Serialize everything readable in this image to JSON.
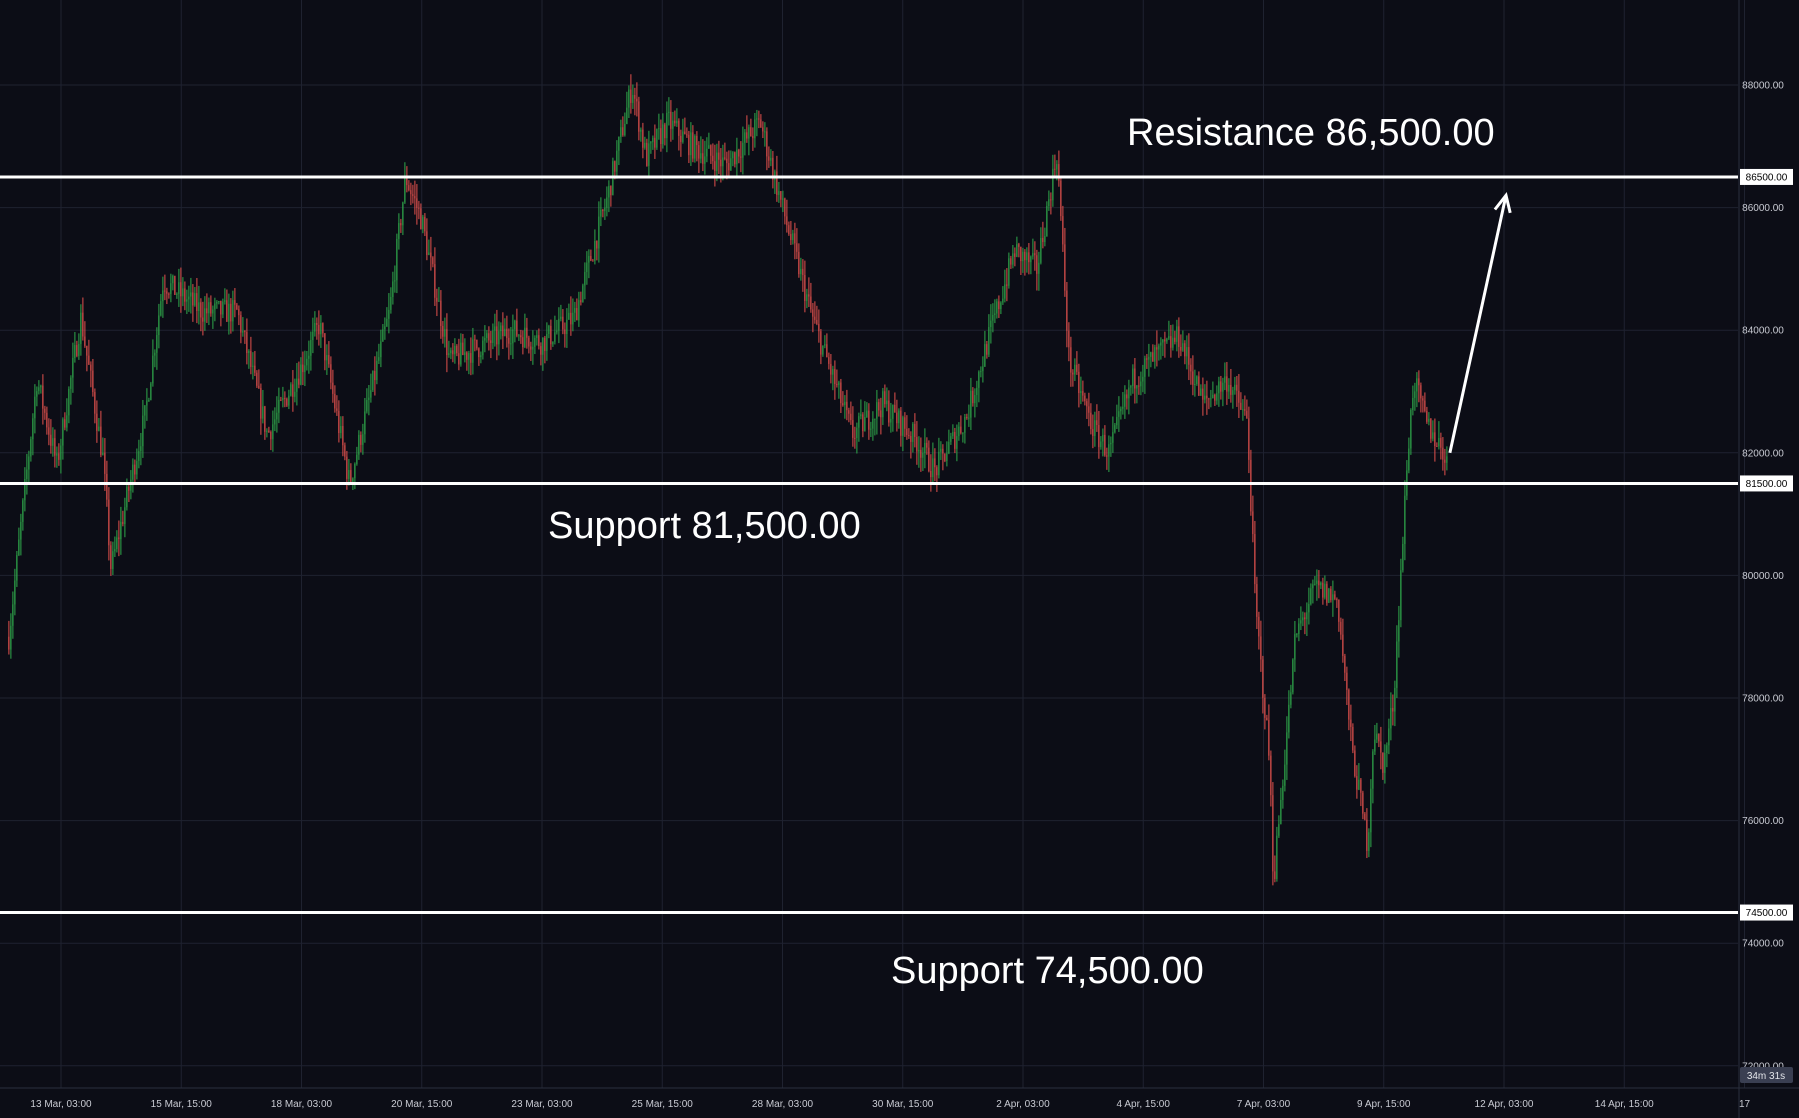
{
  "theme": {
    "background": "#0c0d16",
    "grid": "#1f2230",
    "axis_text": "#c9cbd3",
    "up": "#2fa84a",
    "down": "#e2514d",
    "level_line": "#ffffff"
  },
  "chart_data": {
    "type": "candlestick",
    "title": "",
    "ylim": [
      72000,
      89500
    ],
    "y_ticks": [
      "88000.00",
      "86000.00",
      "84000.00",
      "82000.00",
      "80000.00",
      "78000.00",
      "76000.00",
      "74000.00",
      "72000.00"
    ],
    "x_ticks": [
      "13 Mar, 03:00",
      "15 Mar, 15:00",
      "18 Mar, 03:00",
      "20 Mar, 15:00",
      "23 Mar, 03:00",
      "25 Mar, 15:00",
      "28 Mar, 03:00",
      "30 Mar, 15:00",
      "2 Apr, 03:00",
      "4 Apr, 15:00",
      "7 Apr, 03:00",
      "9 Apr, 15:00",
      "12 Apr, 03:00",
      "14 Apr, 15:00",
      "17"
    ],
    "price_path": [
      {
        "t": "12 Mar, 01:00",
        "price": 79000
      },
      {
        "t": "12 Mar, 15:00",
        "price": 83200
      },
      {
        "t": "13 Mar, 01:00",
        "price": 81800
      },
      {
        "t": "13 Mar, 13:00",
        "price": 84200
      },
      {
        "t": "14 Mar, 00:00",
        "price": 81900
      },
      {
        "t": "14 Mar, 04:00",
        "price": 80100
      },
      {
        "t": "14 Mar, 21:00",
        "price": 82600
      },
      {
        "t": "15 Mar, 06:00",
        "price": 84800
      },
      {
        "t": "16 Mar, 02:00",
        "price": 84300
      },
      {
        "t": "16 Mar, 19:00",
        "price": 84300
      },
      {
        "t": "17 Mar, 10:00",
        "price": 82300
      },
      {
        "t": "18 Mar, 03:00",
        "price": 83400
      },
      {
        "t": "18 Mar, 12:00",
        "price": 84100
      },
      {
        "t": "19 Mar, 03:00",
        "price": 81500
      },
      {
        "t": "19 Mar, 23:00",
        "price": 84300
      },
      {
        "t": "20 Mar, 07:00",
        "price": 86500
      },
      {
        "t": "20 Mar, 15:00",
        "price": 85800
      },
      {
        "t": "21 Mar, 05:00",
        "price": 83500
      },
      {
        "t": "22 Mar, 12:00",
        "price": 84000
      },
      {
        "t": "23 Mar, 03:00",
        "price": 83800
      },
      {
        "t": "23 Mar, 19:00",
        "price": 84200
      },
      {
        "t": "24 Mar, 12:00",
        "price": 86200
      },
      {
        "t": "25 Mar, 00:00",
        "price": 88000
      },
      {
        "t": "25 Mar, 07:00",
        "price": 86800
      },
      {
        "t": "25 Mar, 18:00",
        "price": 87400
      },
      {
        "t": "26 Mar, 06:00",
        "price": 87000
      },
      {
        "t": "26 Mar, 23:00",
        "price": 86700
      },
      {
        "t": "27 Mar, 16:00",
        "price": 87400
      },
      {
        "t": "28 Mar, 03:00",
        "price": 86000
      },
      {
        "t": "28 Mar, 18:00",
        "price": 84200
      },
      {
        "t": "29 Mar, 14:00",
        "price": 82300
      },
      {
        "t": "30 Mar, 05:00",
        "price": 82800
      },
      {
        "t": "30 Mar, 22:00",
        "price": 82200
      },
      {
        "t": "31 Mar, 07:00",
        "price": 81700
      },
      {
        "t": "31 Mar, 23:00",
        "price": 82600
      },
      {
        "t": "1 Apr, 11:00",
        "price": 84000
      },
      {
        "t": "1 Apr, 23:00",
        "price": 85300
      },
      {
        "t": "2 Apr, 10:00",
        "price": 85000
      },
      {
        "t": "2 Apr, 20:00",
        "price": 86900
      },
      {
        "t": "3 Apr, 02:00",
        "price": 83500
      },
      {
        "t": "3 Apr, 14:00",
        "price": 82400
      },
      {
        "t": "3 Apr, 22:00",
        "price": 82000
      },
      {
        "t": "4 Apr, 10:00",
        "price": 83200
      },
      {
        "t": "4 Apr, 22:00",
        "price": 83600
      },
      {
        "t": "5 Apr, 09:00",
        "price": 83900
      },
      {
        "t": "5 Apr, 21:00",
        "price": 82800
      },
      {
        "t": "6 Apr, 09:00",
        "price": 83200
      },
      {
        "t": "6 Apr, 19:00",
        "price": 82500
      },
      {
        "t": "6 Apr, 23:00",
        "price": 79500
      },
      {
        "t": "7 Apr, 06:00",
        "price": 77000
      },
      {
        "t": "7 Apr, 08:00",
        "price": 75000
      },
      {
        "t": "7 Apr, 19:00",
        "price": 79000
      },
      {
        "t": "8 Apr, 05:00",
        "price": 79800
      },
      {
        "t": "8 Apr, 16:00",
        "price": 79600
      },
      {
        "t": "8 Apr, 23:00",
        "price": 77200
      },
      {
        "t": "9 Apr, 07:00",
        "price": 75600
      },
      {
        "t": "9 Apr, 10:00",
        "price": 77500
      },
      {
        "t": "9 Apr, 15:00",
        "price": 76900
      },
      {
        "t": "9 Apr, 20:00",
        "price": 78000
      },
      {
        "t": "10 Apr, 03:00",
        "price": 82000
      },
      {
        "t": "10 Apr, 06:00",
        "price": 83200
      },
      {
        "t": "10 Apr, 12:00",
        "price": 82500
      },
      {
        "t": "10 Apr, 23:00",
        "price": 81900
      }
    ],
    "price_levels": [
      {
        "name": "Resistance",
        "value": 86500,
        "axis_label": "86500.00",
        "annotation": "Resistance 86,500.00"
      },
      {
        "name": "Support",
        "value": 81500,
        "axis_label": "81500.00",
        "annotation": "Support 81,500.00"
      },
      {
        "name": "Support",
        "value": 74500,
        "axis_label": "74500.00",
        "annotation": "Support 74,500.00"
      }
    ],
    "projection_arrow": {
      "from": {
        "t": "11 Apr, 00:00",
        "price": 82000
      },
      "to": {
        "t": "12 Apr, 04:00",
        "price": 86200
      }
    },
    "grid": true
  },
  "countdown": "34m 31s"
}
